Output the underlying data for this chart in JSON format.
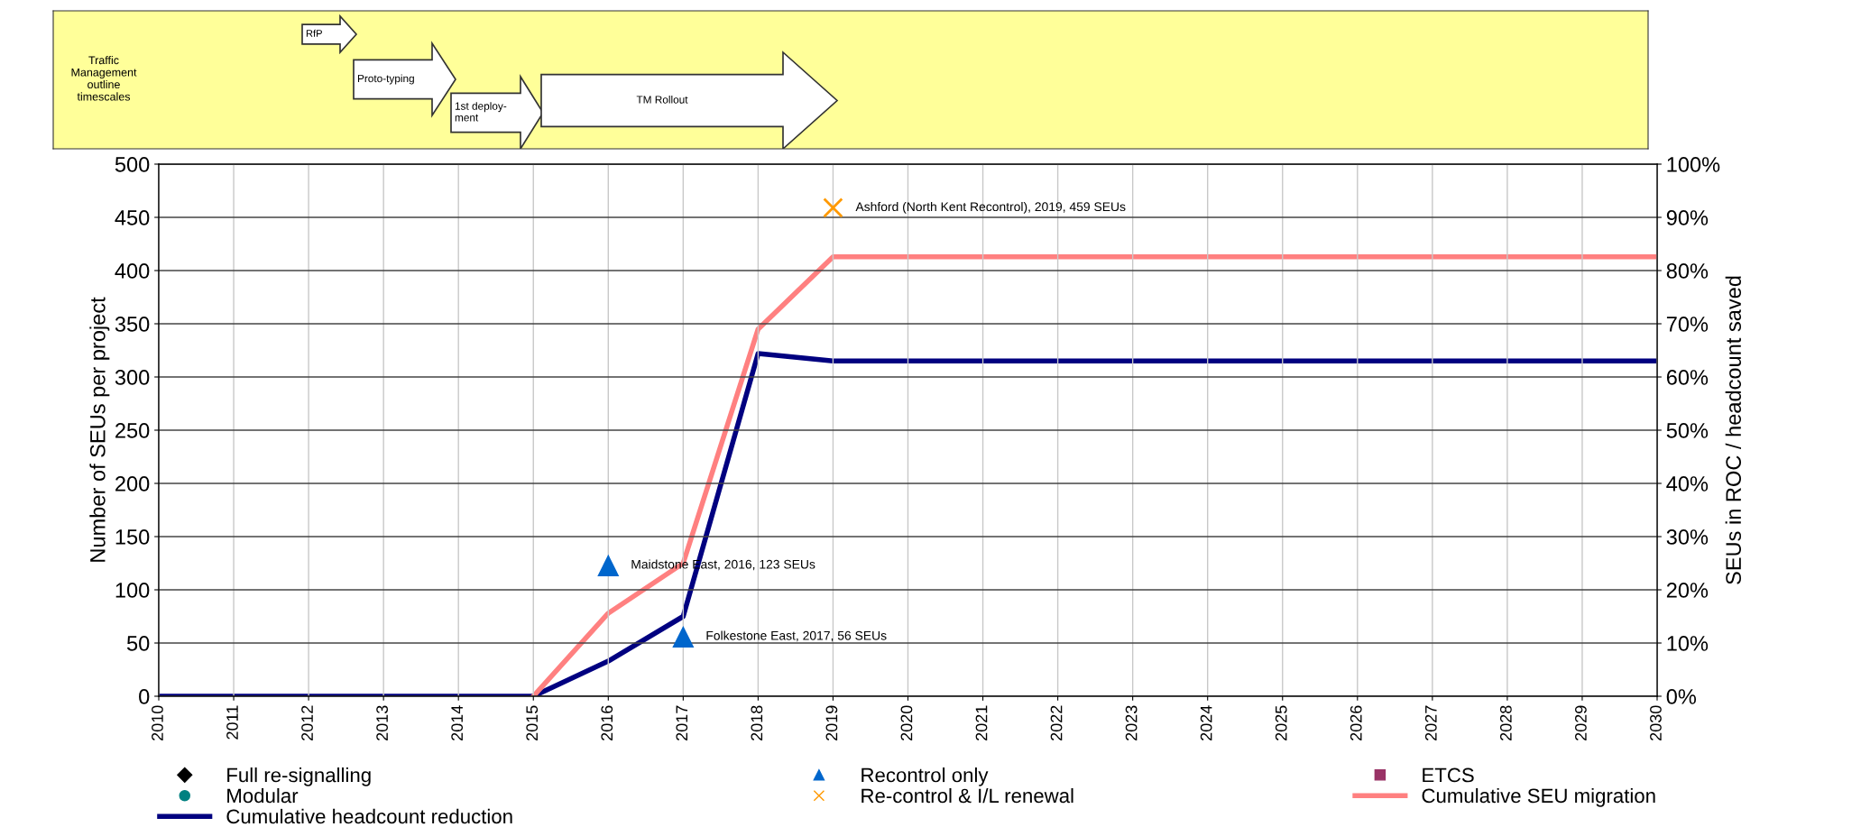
{
  "chart_data": {
    "type": "line",
    "ylabel": "Number of SEUs per project",
    "y2label": "SEUs in ROC / headcount saved",
    "x": [
      2010,
      2011,
      2012,
      2013,
      2014,
      2015,
      2016,
      2017,
      2018,
      2019,
      2020,
      2021,
      2022,
      2023,
      2024,
      2025,
      2026,
      2027,
      2028,
      2029,
      2030
    ],
    "xlim": [
      2010,
      2030
    ],
    "xticks": [
      2010,
      2011,
      2012,
      2013,
      2014,
      2015,
      2016,
      2017,
      2018,
      2019,
      2020,
      2021,
      2022,
      2023,
      2024,
      2025,
      2026,
      2027,
      2028,
      2029,
      2030
    ],
    "ylim": [
      0,
      500
    ],
    "yticks": [
      0,
      50,
      100,
      150,
      200,
      250,
      300,
      350,
      400,
      450,
      500
    ],
    "y2lim": [
      0,
      100
    ],
    "y2ticks": [
      {
        "value": 0,
        "label": "0%"
      },
      {
        "value": 10,
        "label": "10%"
      },
      {
        "value": 20,
        "label": "20%"
      },
      {
        "value": 30,
        "label": "30%"
      },
      {
        "value": 40,
        "label": "40%"
      },
      {
        "value": 50,
        "label": "50%"
      },
      {
        "value": 60,
        "label": "60%"
      },
      {
        "value": 70,
        "label": "70%"
      },
      {
        "value": 80,
        "label": "80%"
      },
      {
        "value": 90,
        "label": "90%"
      },
      {
        "value": 100,
        "label": "100%"
      }
    ],
    "grid": true,
    "legend": "bottom",
    "series": [
      {
        "name": "Full re-signalling",
        "type": "scatter",
        "color": "#000000",
        "marker": "diamond",
        "values": [
          null,
          null,
          null,
          null,
          null,
          null,
          null,
          null,
          null,
          null,
          null,
          null,
          null,
          null,
          null,
          null,
          null,
          null,
          null,
          null,
          null
        ]
      },
      {
        "name": "Modular",
        "type": "scatter",
        "color": "#008080",
        "marker": "circle",
        "values": [
          null,
          null,
          null,
          null,
          null,
          null,
          null,
          null,
          null,
          null,
          null,
          null,
          null,
          null,
          null,
          null,
          null,
          null,
          null,
          null,
          null
        ]
      },
      {
        "name": "Cumulative headcount reduction",
        "axis": "y2",
        "color": "#000080",
        "marker": "none",
        "values": [
          0,
          0,
          0,
          0,
          0,
          0,
          6.6,
          15,
          64.4,
          63,
          63,
          63,
          63,
          63,
          63,
          63,
          63,
          63,
          63,
          63,
          63
        ]
      },
      {
        "name": "Recontrol only",
        "type": "scatter",
        "color": "#0066cc",
        "marker": "triangle",
        "x": [
          2016,
          2017
        ],
        "values": [
          123,
          56
        ]
      },
      {
        "name": "Re-control & I/L renewal",
        "type": "scatter",
        "color": "#ff9900",
        "marker": "cross",
        "x": [
          2019
        ],
        "values": [
          459
        ]
      },
      {
        "name": "ETCS",
        "type": "scatter",
        "color": "#993366",
        "marker": "square",
        "values": [
          null,
          null,
          null,
          null,
          null,
          null,
          null,
          null,
          null,
          null,
          null,
          null,
          null,
          null,
          null,
          null,
          null,
          null,
          null,
          null,
          null
        ]
      },
      {
        "name": "Cumulative SEU migration",
        "axis": "y2",
        "color": "#ff8080",
        "marker": "none",
        "values": [
          null,
          null,
          null,
          null,
          null,
          0,
          15.6,
          25,
          69,
          82.6,
          82.6,
          82.6,
          82.6,
          82.6,
          82.6,
          82.6,
          82.6,
          82.6,
          82.6,
          82.6,
          82.6
        ]
      }
    ],
    "annotations": [
      "Traffic\nManagement\noutline\ntimescales",
      "RfP",
      "Proto-typing",
      "1st deploy-\nment",
      "TM Rollout",
      {
        "text": "Maidstone East, 2016, 123 SEUs",
        "x": 2016,
        "y": 123
      },
      {
        "text": "Folkestone East, 2017, 56 SEUs",
        "x": 2017,
        "y": 56
      },
      {
        "text": "Ashford (North Kent Recontrol), 2019, 459 SEUs",
        "x": 2019,
        "y": 459
      }
    ]
  }
}
